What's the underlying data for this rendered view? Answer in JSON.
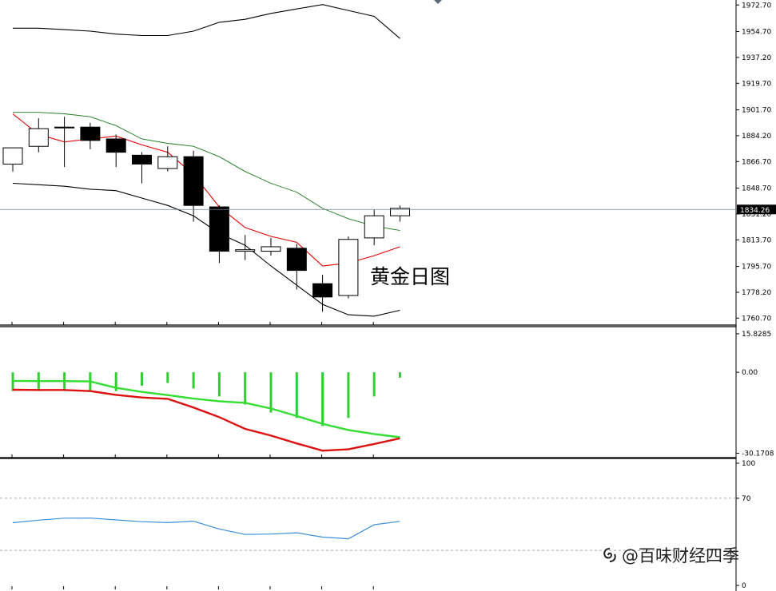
{
  "annotation": "黄金日图",
  "watermark": {
    "text": "@百味财经四季",
    "icon": "swirl-logo-icon"
  },
  "chart_data": [
    {
      "type": "candlestick",
      "panel": "price",
      "ylim": [
        1756,
        1975
      ],
      "yticks": [
        1972.7,
        1954.7,
        1937.2,
        1919.7,
        1901.7,
        1884.2,
        1866.7,
        1848.7,
        1831.2,
        1813.7,
        1795.7,
        1778.2,
        1760.7
      ],
      "ytick_labels": [
        "1972.70",
        "1954.70",
        "1937.20",
        "1919.70",
        "1901.70",
        "1884.20",
        "1866.70",
        "1848.70",
        "1831.20",
        "1813.70",
        "1795.70",
        "1778.20",
        "1760.70"
      ],
      "current_price": 1834.26,
      "current_price_label": "1834.26",
      "candles": [
        {
          "o": 1865,
          "h": 1876,
          "l": 1860,
          "c": 1876
        },
        {
          "o": 1877,
          "h": 1896,
          "l": 1873,
          "c": 1889
        },
        {
          "o": 1890,
          "h": 1897,
          "l": 1863,
          "c": 1890
        },
        {
          "o": 1890,
          "h": 1893,
          "l": 1875,
          "c": 1881
        },
        {
          "o": 1882,
          "h": 1885,
          "l": 1863,
          "c": 1873
        },
        {
          "o": 1871,
          "h": 1873,
          "l": 1852,
          "c": 1865
        },
        {
          "o": 1862,
          "h": 1877,
          "l": 1860,
          "c": 1870
        },
        {
          "o": 1870,
          "h": 1874,
          "l": 1826,
          "c": 1837
        },
        {
          "o": 1836,
          "h": 1837,
          "l": 1798,
          "c": 1806
        },
        {
          "o": 1806,
          "h": 1817,
          "l": 1800,
          "c": 1807
        },
        {
          "o": 1806,
          "h": 1815,
          "l": 1803,
          "c": 1809
        },
        {
          "o": 1808,
          "h": 1811,
          "l": 1780,
          "c": 1793
        },
        {
          "o": 1784,
          "h": 1790,
          "l": 1765,
          "c": 1775
        },
        {
          "o": 1776,
          "h": 1816,
          "l": 1774,
          "c": 1814
        },
        {
          "o": 1815,
          "h": 1834,
          "l": 1810,
          "c": 1830
        },
        {
          "o": 1830,
          "h": 1837,
          "l": 1826,
          "c": 1835
        }
      ],
      "bollinger_upper": {
        "color": "#000000",
        "points": [
          [
            0,
            1957
          ],
          [
            1,
            1957
          ],
          [
            2,
            1956
          ],
          [
            3,
            1955
          ],
          [
            4,
            1953
          ],
          [
            5,
            1952
          ],
          [
            6,
            1952
          ],
          [
            7,
            1955
          ],
          [
            8,
            1961
          ],
          [
            9,
            1963
          ],
          [
            10,
            1967
          ],
          [
            11,
            1970
          ],
          [
            12,
            1973
          ],
          [
            13,
            1969
          ],
          [
            14,
            1965
          ],
          [
            15,
            1950
          ]
        ]
      },
      "bollinger_lower": {
        "color": "#000000",
        "points": [
          [
            0,
            1852
          ],
          [
            1,
            1851
          ],
          [
            2,
            1850
          ],
          [
            3,
            1848
          ],
          [
            4,
            1847
          ],
          [
            5,
            1842
          ],
          [
            6,
            1837
          ],
          [
            7,
            1830
          ],
          [
            8,
            1818
          ],
          [
            9,
            1810
          ],
          [
            10,
            1796
          ],
          [
            11,
            1783
          ],
          [
            12,
            1770
          ],
          [
            13,
            1763
          ],
          [
            14,
            1762
          ],
          [
            15,
            1766
          ]
        ]
      },
      "ma_green": {
        "color": "#1a7a1a",
        "points": [
          [
            0,
            1900
          ],
          [
            1,
            1900
          ],
          [
            2,
            1899
          ],
          [
            3,
            1897
          ],
          [
            4,
            1891
          ],
          [
            5,
            1882
          ],
          [
            6,
            1879
          ],
          [
            7,
            1877
          ],
          [
            8,
            1870
          ],
          [
            9,
            1860
          ],
          [
            10,
            1852
          ],
          [
            11,
            1846
          ],
          [
            12,
            1835
          ],
          [
            13,
            1828
          ],
          [
            14,
            1823
          ],
          [
            15,
            1820
          ]
        ]
      },
      "ma_red": {
        "color": "#e00000",
        "points": [
          [
            0,
            1899
          ],
          [
            1,
            1885
          ],
          [
            2,
            1880
          ],
          [
            3,
            1882
          ],
          [
            4,
            1884
          ],
          [
            5,
            1878
          ],
          [
            6,
            1873
          ],
          [
            7,
            1858
          ],
          [
            8,
            1836
          ],
          [
            9,
            1822
          ],
          [
            10,
            1816
          ],
          [
            11,
            1812
          ],
          [
            12,
            1796
          ],
          [
            13,
            1798
          ],
          [
            14,
            1803
          ],
          [
            15,
            1809
          ]
        ]
      }
    },
    {
      "type": "macd",
      "panel": "oscillator",
      "ylim": [
        -31.5,
        17
      ],
      "yticks": [
        15.8285,
        0.0,
        -30.1708
      ],
      "ytick_labels": [
        "15.8285",
        "0.00",
        "-30.1708"
      ],
      "histogram": {
        "color": "#33cc33",
        "values": [
          -7,
          -7,
          -7,
          -7,
          -7,
          -5,
          -4,
          -6,
          -9,
          -12,
          -15,
          -17,
          -20,
          -17,
          -9,
          -2
        ]
      },
      "signal": {
        "color": "#33dd33",
        "values": [
          -3.2,
          -3.3,
          -3.3,
          -3.4,
          -5.8,
          -7.3,
          -8.5,
          -9.8,
          -10.8,
          -11.4,
          -13.5,
          -16.3,
          -19.2,
          -21.5,
          -23.0,
          -24.2
        ]
      },
      "macd_line": {
        "color": "#dd1111",
        "values": [
          -6.5,
          -6.6,
          -6.6,
          -7.0,
          -8.4,
          -9.4,
          -9.9,
          -13.1,
          -16.7,
          -21.1,
          -23.6,
          -26.5,
          -29.2,
          -28.7,
          -26.7,
          -24.6
        ]
      }
    },
    {
      "type": "line",
      "panel": "rsi",
      "ylim": [
        0,
        100
      ],
      "yticks": [
        100,
        70,
        0
      ],
      "ytick_labels": [
        "100",
        "70",
        "0"
      ],
      "levels": [
        70,
        30
      ],
      "series": {
        "color": "#3a8fd8",
        "values": [
          51.2,
          53.2,
          54.7,
          54.8,
          53.4,
          52.0,
          51.3,
          52.4,
          46.4,
          42.2,
          42.5,
          43.5,
          40.2,
          38.9,
          49.7,
          52.3
        ]
      }
    }
  ]
}
